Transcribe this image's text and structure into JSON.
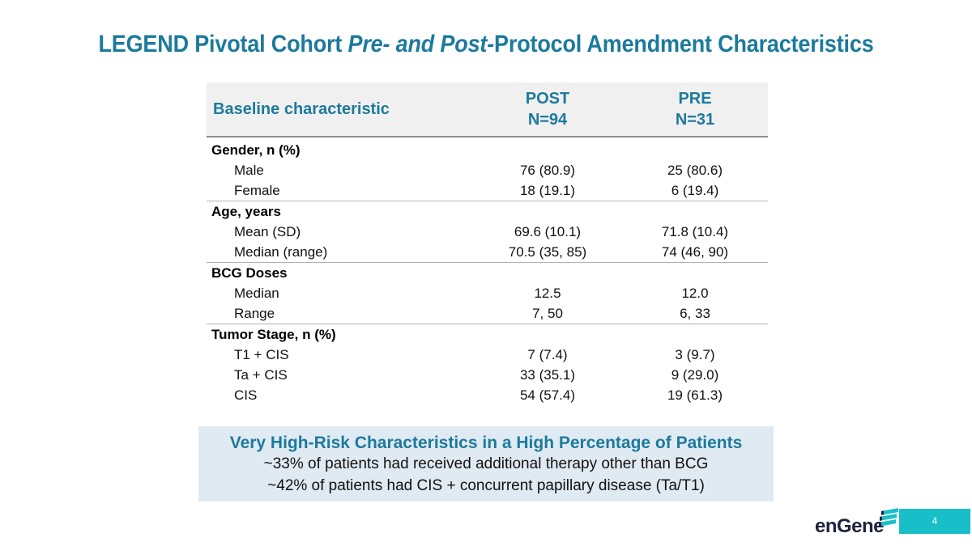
{
  "title": {
    "part1": "LEGEND Pivotal Cohort ",
    "part2_italic": "Pre- and Post-",
    "part3": "Protocol Amendment Characteristics"
  },
  "table": {
    "header": {
      "col1": "Baseline characteristic",
      "post_label": "POST",
      "post_n": "N=94",
      "pre_label": "PRE",
      "pre_n": "N=31"
    },
    "sections": [
      {
        "label": "Gender, n (%)",
        "rows": [
          {
            "label": "Male",
            "post": "76 (80.9)",
            "pre": "25 (80.6)"
          },
          {
            "label": "Female",
            "post": "18 (19.1)",
            "pre": "6 (19.4)"
          }
        ]
      },
      {
        "label": "Age, years",
        "rows": [
          {
            "label": "Mean (SD)",
            "post": "69.6 (10.1)",
            "pre": "71.8 (10.4)"
          },
          {
            "label": "Median (range)",
            "post": "70.5 (35, 85)",
            "pre": "74 (46, 90)"
          }
        ]
      },
      {
        "label": "BCG Doses",
        "rows": [
          {
            "label": "Median",
            "post": "12.5",
            "pre": "12.0"
          },
          {
            "label": "Range",
            "post": "7, 50",
            "pre": "6, 33"
          }
        ]
      },
      {
        "label": "Tumor Stage, n (%)",
        "rows": [
          {
            "label": "T1 + CIS",
            "post": "7 (7.4)",
            "pre": "3 (9.7)"
          },
          {
            "label": "Ta + CIS",
            "post": "33 (35.1)",
            "pre": "9 (29.0)"
          },
          {
            "label": "CIS",
            "post": "54 (57.4)",
            "pre": "19 (61.3)"
          }
        ]
      }
    ]
  },
  "callout": {
    "title": "Very High-Risk Characteristics in a High Percentage of Patients",
    "line1": "~33% of patients had received additional therapy other than BCG",
    "line2": "~42% of patients had CIS + concurrent papillary disease (Ta/T1)"
  },
  "footer": {
    "logo_text": "enGene",
    "page_number": "4"
  },
  "colors": {
    "accent_teal_text": "#1C7A9D",
    "brand_teal": "#18BFC9",
    "logo_navy": "#1E2240",
    "table_header_bg": "#F1F0F0",
    "callout_bg": "#E0EAF2"
  }
}
